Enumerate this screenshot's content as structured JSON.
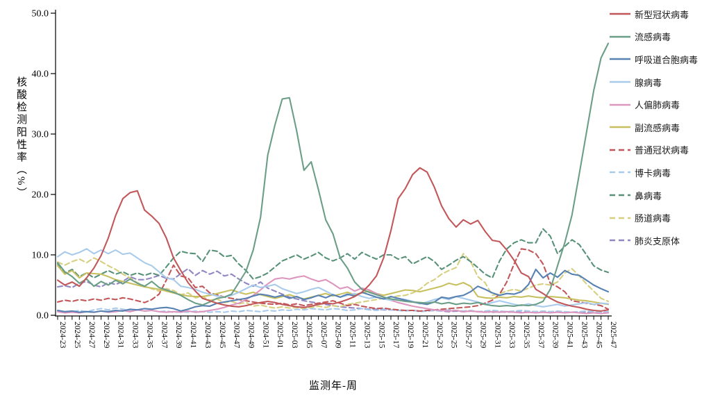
{
  "chart_data": {
    "type": "line",
    "title": "",
    "xlabel": "监测年-周",
    "ylabel": "核酸检测阳性率（%）",
    "ylim": [
      0,
      50
    ],
    "grid": false,
    "legend_position": "right",
    "y_ticks": [
      0,
      10,
      20,
      30,
      40,
      50
    ],
    "y_tick_labels": [
      "0.0",
      "10.0",
      "20.0",
      "30.0",
      "40.0",
      "50.0"
    ],
    "x_label_every": 2,
    "categories": [
      "2024-23",
      "2024-24",
      "2024-25",
      "2024-26",
      "2024-27",
      "2024-28",
      "2024-29",
      "2024-30",
      "2024-31",
      "2024-32",
      "2024-33",
      "2024-34",
      "2024-35",
      "2024-36",
      "2024-37",
      "2024-38",
      "2024-39",
      "2024-40",
      "2024-41",
      "2024-42",
      "2024-43",
      "2024-44",
      "2024-45",
      "2024-46",
      "2024-47",
      "2024-48",
      "2024-49",
      "2024-50",
      "2024-51",
      "2024-52",
      "2025-01",
      "2025-02",
      "2025-03",
      "2025-04",
      "2025-05",
      "2025-06",
      "2025-07",
      "2025-08",
      "2025-09",
      "2025-10",
      "2025-11",
      "2025-12",
      "2025-13",
      "2025-14",
      "2025-15",
      "2025-16",
      "2025-17",
      "2025-18",
      "2025-19",
      "2025-20",
      "2025-21",
      "2025-22",
      "2025-23",
      "2025-24",
      "2025-25",
      "2025-26",
      "2025-27",
      "2025-28",
      "2025-29",
      "2025-30",
      "2025-31",
      "2025-32",
      "2025-33",
      "2025-34",
      "2025-35",
      "2025-36",
      "2025-37",
      "2025-38",
      "2025-39",
      "2025-40",
      "2025-41",
      "2025-42",
      "2025-43",
      "2025-44",
      "2025-45",
      "2025-46",
      "2025-47"
    ],
    "series": [
      {
        "id": "covid",
        "name": "新型冠状病毒",
        "color": "#c25759",
        "dashed": false,
        "values": [
          5.8,
          5.0,
          5.5,
          4.8,
          6.2,
          7.8,
          9.9,
          12.8,
          16.5,
          19.3,
          20.3,
          20.6,
          17.4,
          16.4,
          15.2,
          12.8,
          9.5,
          7.4,
          5.4,
          4.0,
          2.8,
          2.4,
          2.0,
          1.7,
          1.5,
          1.4,
          1.6,
          1.9,
          2.1,
          2.3,
          2.1,
          1.8,
          1.6,
          1.4,
          1.3,
          1.5,
          1.8,
          2.0,
          1.9,
          2.2,
          2.6,
          3.1,
          3.8,
          5.0,
          6.5,
          9.5,
          14.0,
          19.3,
          21.0,
          23.3,
          24.4,
          23.7,
          21.2,
          18.1,
          16.0,
          14.6,
          15.8,
          15.1,
          15.7,
          13.9,
          12.4,
          12.2,
          10.8,
          9.1,
          7.0,
          6.4,
          4.3,
          3.6,
          2.8,
          2.2,
          1.8,
          1.5,
          1.3,
          1.0,
          0.8,
          0.7,
          0.9
        ]
      },
      {
        "id": "flu",
        "name": "流感病毒",
        "color": "#6b9e87",
        "dashed": false,
        "values": [
          8.7,
          7.2,
          6.4,
          5.3,
          6.0,
          4.8,
          5.6,
          5.0,
          5.8,
          5.2,
          6.0,
          5.3,
          4.8,
          5.6,
          4.6,
          4.2,
          3.8,
          3.3,
          2.6,
          2.0,
          1.7,
          2.2,
          2.8,
          3.0,
          3.5,
          5.4,
          7.3,
          10.8,
          16.2,
          26.5,
          31.5,
          35.8,
          36.0,
          30.5,
          24.0,
          25.4,
          20.8,
          15.8,
          13.5,
          9.5,
          7.8,
          5.5,
          4.3,
          3.8,
          3.4,
          3.0,
          2.7,
          2.5,
          2.3,
          2.2,
          2.1,
          2.0,
          2.2,
          1.9,
          2.1,
          1.8,
          2.0,
          1.9,
          2.1,
          1.8,
          1.6,
          1.5,
          1.6,
          1.5,
          1.7,
          1.6,
          1.8,
          2.3,
          4.3,
          8.2,
          12.0,
          16.6,
          23.4,
          30.3,
          37.2,
          42.6,
          45.0
        ]
      },
      {
        "id": "rsv",
        "name": "呼吸道合胞病毒",
        "color": "#5781b3",
        "dashed": false,
        "values": [
          0.8,
          0.6,
          0.7,
          0.5,
          0.6,
          0.5,
          0.7,
          0.6,
          0.8,
          0.7,
          1.0,
          0.9,
          1.1,
          1.0,
          1.2,
          1.3,
          1.1,
          0.7,
          1.0,
          1.4,
          1.6,
          1.5,
          2.0,
          2.2,
          2.4,
          2.6,
          2.8,
          3.2,
          3.5,
          3.3,
          3.0,
          3.3,
          2.8,
          3.1,
          2.6,
          2.9,
          3.3,
          2.9,
          3.4,
          3.0,
          3.5,
          3.2,
          3.8,
          3.4,
          3.0,
          2.7,
          3.1,
          2.8,
          2.5,
          2.2,
          2.0,
          1.8,
          2.2,
          3.0,
          2.8,
          3.1,
          3.3,
          3.9,
          4.8,
          4.3,
          3.7,
          3.3,
          3.6,
          3.5,
          3.9,
          5.1,
          7.6,
          6.2,
          7.0,
          6.3,
          7.4,
          6.8,
          6.6,
          5.8,
          5.0,
          4.4,
          3.9
        ]
      },
      {
        "id": "adv",
        "name": "腺病毒",
        "color": "#a9cbeb",
        "dashed": false,
        "values": [
          9.7,
          10.5,
          10.0,
          10.4,
          11.0,
          10.2,
          10.8,
          10.2,
          10.8,
          10.1,
          10.3,
          9.5,
          8.7,
          8.2,
          7.2,
          6.2,
          5.9,
          4.8,
          4.6,
          4.3,
          3.8,
          3.5,
          3.2,
          3.0,
          3.3,
          3.8,
          4.4,
          5.0,
          4.6,
          4.8,
          5.1,
          4.4,
          4.0,
          3.6,
          3.9,
          4.3,
          4.6,
          4.0,
          3.4,
          3.0,
          3.3,
          3.6,
          3.1,
          2.8,
          3.0,
          2.7,
          2.5,
          2.8,
          2.6,
          2.3,
          1.9,
          2.2,
          2.6,
          2.9,
          2.6,
          3.1,
          2.8,
          2.5,
          2.2,
          1.8,
          2.1,
          2.4,
          2.1,
          1.8,
          1.6,
          1.9,
          1.6,
          1.4,
          1.6,
          1.8,
          1.5,
          1.7,
          1.9,
          2.1,
          1.8,
          2.0,
          1.9
        ]
      },
      {
        "id": "hmpv",
        "name": "人偏肺病毒",
        "color": "#dd96be",
        "dashed": false,
        "values": [
          0.6,
          0.4,
          0.5,
          0.4,
          0.6,
          0.5,
          0.7,
          0.5,
          0.6,
          0.8,
          0.6,
          0.9,
          0.7,
          0.8,
          0.6,
          0.5,
          0.6,
          0.5,
          0.7,
          0.5,
          0.6,
          0.8,
          1.0,
          1.3,
          1.7,
          2.0,
          2.6,
          3.3,
          4.2,
          5.2,
          6.0,
          6.2,
          6.0,
          6.3,
          6.5,
          6.0,
          5.6,
          5.9,
          5.2,
          4.4,
          4.7,
          4.0,
          4.5,
          4.2,
          3.6,
          3.0,
          2.5,
          2.1,
          1.8,
          1.5,
          1.3,
          1.1,
          0.9,
          0.8,
          0.7,
          0.8,
          0.6,
          0.7,
          0.6,
          0.5,
          0.6,
          0.5,
          0.6,
          0.5,
          0.4,
          0.5,
          0.4,
          0.5,
          0.4,
          0.5,
          0.4,
          0.5,
          0.4,
          0.3,
          0.4,
          0.3,
          0.4
        ]
      },
      {
        "id": "piv",
        "name": "副流感病毒",
        "color": "#c8c05f",
        "dashed": false,
        "values": [
          8.2,
          6.8,
          7.4,
          6.2,
          7.0,
          6.9,
          6.8,
          6.4,
          5.9,
          5.6,
          5.3,
          5.0,
          4.7,
          4.5,
          4.3,
          4.0,
          3.7,
          3.4,
          3.2,
          3.1,
          3.1,
          3.3,
          3.6,
          3.9,
          4.2,
          3.8,
          3.5,
          3.8,
          3.4,
          3.1,
          2.8,
          3.1,
          3.4,
          3.0,
          2.7,
          3.0,
          3.3,
          3.6,
          3.2,
          3.5,
          3.8,
          3.4,
          3.7,
          4.0,
          3.6,
          3.3,
          3.6,
          3.9,
          4.2,
          4.1,
          3.9,
          4.2,
          4.5,
          4.8,
          5.3,
          5.0,
          5.4,
          4.8,
          3.1,
          2.9,
          2.8,
          3.0,
          2.9,
          3.1,
          3.0,
          3.2,
          3.0,
          2.9,
          3.1,
          3.0,
          2.9,
          2.7,
          2.5,
          2.4,
          2.2,
          2.0,
          1.8
        ]
      },
      {
        "id": "hcov",
        "name": "普通冠状病毒",
        "color": "#c25759",
        "dashed": true,
        "values": [
          2.2,
          2.5,
          2.3,
          2.6,
          2.4,
          2.7,
          2.5,
          2.8,
          2.6,
          2.9,
          2.7,
          2.4,
          2.1,
          2.6,
          3.5,
          5.8,
          8.3,
          6.5,
          6.2,
          4.6,
          4.8,
          3.7,
          3.4,
          3.0,
          2.8,
          2.6,
          2.4,
          2.2,
          2.0,
          1.9,
          1.8,
          2.0,
          1.7,
          1.9,
          1.6,
          1.8,
          2.0,
          2.2,
          2.4,
          2.0,
          1.6,
          1.8,
          1.5,
          1.3,
          1.1,
          1.2,
          1.0,
          0.9,
          0.8,
          0.8,
          0.7,
          0.8,
          0.9,
          1.0,
          1.1,
          1.2,
          1.3,
          1.4,
          1.6,
          2.0,
          2.5,
          3.5,
          5.5,
          8.5,
          11.0,
          10.8,
          10.2,
          8.5,
          5.3,
          4.7,
          3.9,
          2.4,
          2.2,
          2.0,
          1.8,
          1.6,
          1.0
        ]
      },
      {
        "id": "hbov",
        "name": "博卡病毒",
        "color": "#a9cbeb",
        "dashed": true,
        "values": [
          0.7,
          0.5,
          0.6,
          0.8,
          0.6,
          0.9,
          1.1,
          0.9,
          1.2,
          1.0,
          0.8,
          0.9,
          0.7,
          0.8,
          0.6,
          0.7,
          0.5,
          0.6,
          0.5,
          0.7,
          0.6,
          0.5,
          0.6,
          0.5,
          0.7,
          0.6,
          0.8,
          0.7,
          0.6,
          0.8,
          0.7,
          0.9,
          0.8,
          1.0,
          0.9,
          1.1,
          1.0,
          0.9,
          1.1,
          1.0,
          0.8,
          0.9,
          1.1,
          0.9,
          0.8,
          1.0,
          0.9,
          0.8,
          0.7,
          0.8,
          0.6,
          0.7,
          0.8,
          0.7,
          0.9,
          0.8,
          0.7,
          0.8,
          0.6,
          0.7,
          0.8,
          0.7,
          0.6,
          0.7,
          0.8,
          0.7,
          0.6,
          0.7,
          0.6,
          0.7,
          0.6,
          0.5,
          0.6,
          0.7,
          0.6,
          0.5,
          0.6
        ]
      },
      {
        "id": "hrv",
        "name": "鼻病毒",
        "color": "#579178",
        "dashed": true,
        "values": [
          8.5,
          7.0,
          7.6,
          6.4,
          7.0,
          6.2,
          6.8,
          7.4,
          6.8,
          7.2,
          6.6,
          7.0,
          6.6,
          7.0,
          6.6,
          8.0,
          9.5,
          10.6,
          10.3,
          10.2,
          8.9,
          10.8,
          10.6,
          9.7,
          9.9,
          8.5,
          7.4,
          6.0,
          6.4,
          7.0,
          8.0,
          9.0,
          9.5,
          10.0,
          9.3,
          9.8,
          10.4,
          9.5,
          9.0,
          9.5,
          10.2,
          9.3,
          10.4,
          9.8,
          9.3,
          10.0,
          10.0,
          9.3,
          9.7,
          8.5,
          9.1,
          9.7,
          8.9,
          7.6,
          8.3,
          9.1,
          9.7,
          8.9,
          7.9,
          6.8,
          6.2,
          9.0,
          11.0,
          12.0,
          12.5,
          12.0,
          12.0,
          14.3,
          13.1,
          10.2,
          11.4,
          12.5,
          11.7,
          10.0,
          8.2,
          7.5,
          7.1
        ]
      },
      {
        "id": "ev",
        "name": "肠道病毒",
        "color": "#d6cf7f",
        "dashed": true,
        "values": [
          8.8,
          8.3,
          8.9,
          9.3,
          8.7,
          9.5,
          8.9,
          8.2,
          7.6,
          6.8,
          6.2,
          5.4,
          4.8,
          4.4,
          4.0,
          4.4,
          4.1,
          3.4,
          3.7,
          2.9,
          3.1,
          2.5,
          2.7,
          2.1,
          2.3,
          1.9,
          2.1,
          1.5,
          1.7,
          1.4,
          1.2,
          1.4,
          1.2,
          1.3,
          1.1,
          1.3,
          1.5,
          1.3,
          1.6,
          1.4,
          1.8,
          2.0,
          2.2,
          2.4,
          2.6,
          2.8,
          3.0,
          3.2,
          3.3,
          3.7,
          4.3,
          5.3,
          5.9,
          6.8,
          7.4,
          7.9,
          10.2,
          8.9,
          6.4,
          5.4,
          3.3,
          3.6,
          4.0,
          4.3,
          4.0,
          4.5,
          5.0,
          5.2,
          5.0,
          5.5,
          7.0,
          7.7,
          6.5,
          5.2,
          4.0,
          2.8,
          2.3
        ]
      },
      {
        "id": "mp",
        "name": "肺炎支原体",
        "color": "#9186c4",
        "dashed": true,
        "values": [
          4.7,
          4.9,
          4.6,
          5.3,
          5.6,
          5.0,
          4.7,
          5.4,
          5.1,
          5.6,
          6.4,
          5.9,
          5.9,
          6.2,
          6.6,
          6.1,
          6.0,
          6.9,
          7.7,
          6.6,
          7.4,
          6.8,
          7.3,
          6.5,
          6.8,
          6.0,
          5.3,
          4.8,
          5.5,
          4.5,
          4.0,
          3.5,
          3.0,
          2.7,
          2.4,
          2.2,
          2.0,
          1.8,
          1.6,
          1.4,
          1.3,
          1.2,
          1.1,
          1.0,
          1.0,
          0.9,
          0.9,
          0.8,
          0.8,
          0.8,
          0.7,
          0.7,
          0.8,
          0.7,
          0.6,
          0.7,
          0.6,
          0.7,
          0.6,
          0.6,
          0.5,
          0.6,
          0.5,
          0.6,
          0.5,
          0.5,
          0.6,
          0.5,
          0.5,
          0.6,
          0.5,
          0.5,
          0.6,
          0.5,
          0.5,
          0.4,
          0.5
        ]
      }
    ]
  }
}
